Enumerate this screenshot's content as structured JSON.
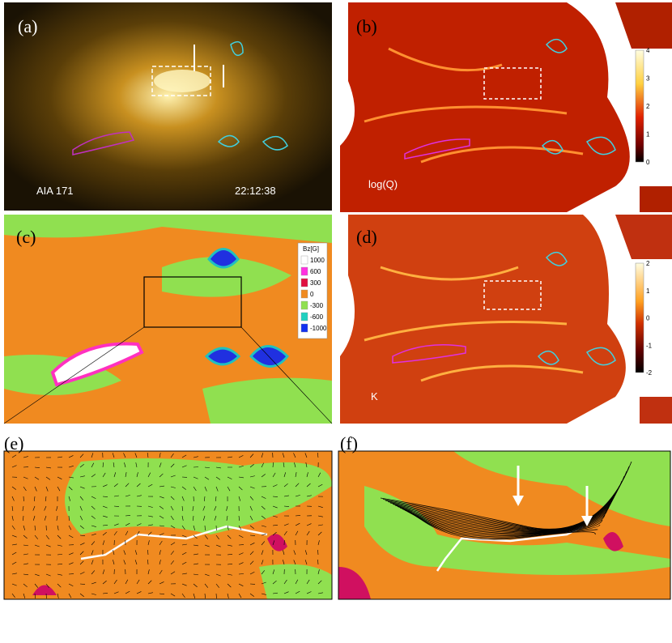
{
  "panels": [
    {
      "label": "(a)",
      "texts": [
        "AIA 171",
        "22:12:38"
      ]
    },
    {
      "label": "(b)",
      "texts": [
        "log(Q)"
      ],
      "colorbar": [
        4,
        3,
        2,
        1,
        0
      ]
    },
    {
      "label": "(c)",
      "legend_title": "Bz[G]",
      "legend": [
        1000,
        600,
        300,
        0,
        -300,
        -600,
        -1000
      ]
    },
    {
      "label": "(d)",
      "texts": [
        "K"
      ],
      "colorbar": [
        2,
        1,
        0,
        -1,
        -2
      ]
    },
    {
      "label": "(e)"
    },
    {
      "label": "(f)"
    }
  ]
}
